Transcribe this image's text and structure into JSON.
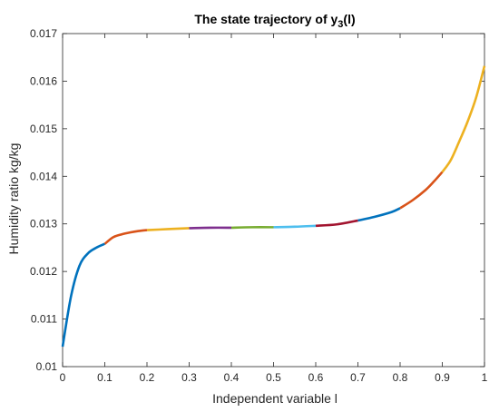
{
  "chart_data": {
    "type": "line",
    "title": {
      "prefix": "The state trajectory of y",
      "subscript": "3",
      "suffix": "(l)"
    },
    "xlabel": "Independent variable l",
    "ylabel": "Humidity ratio kg/kg",
    "xlim": [
      0,
      1
    ],
    "ylim": [
      0.01,
      0.017
    ],
    "xticks": [
      0,
      0.1,
      0.2,
      0.3,
      0.4,
      0.5,
      0.6,
      0.7,
      0.8,
      0.9,
      1
    ],
    "xtick_labels": [
      "0",
      "0.1",
      "0.2",
      "0.3",
      "0.4",
      "0.5",
      "0.6",
      "0.7",
      "0.8",
      "0.9",
      "1"
    ],
    "yticks": [
      0.01,
      0.011,
      0.012,
      0.013,
      0.014,
      0.015,
      0.016,
      0.017
    ],
    "ytick_labels": [
      "0.01",
      "0.011",
      "0.012",
      "0.013",
      "0.014",
      "0.015",
      "0.016",
      "0.017"
    ],
    "grid": false,
    "series": [
      {
        "color": "#0072BD",
        "x": [
          0,
          0.02,
          0.04,
          0.06,
          0.08,
          0.1
        ],
        "y": [
          0.01042,
          0.01148,
          0.01212,
          0.01238,
          0.0125,
          0.01258
        ]
      },
      {
        "color": "#D95319",
        "x": [
          0.1,
          0.12,
          0.14,
          0.16,
          0.18,
          0.2
        ],
        "y": [
          0.01258,
          0.01272,
          0.01278,
          0.01282,
          0.01285,
          0.01287
        ]
      },
      {
        "color": "#EDB120",
        "x": [
          0.2,
          0.25,
          0.3
        ],
        "y": [
          0.01287,
          0.01289,
          0.01291
        ]
      },
      {
        "color": "#7E2F8E",
        "x": [
          0.3,
          0.35,
          0.4
        ],
        "y": [
          0.01291,
          0.01292,
          0.01292
        ]
      },
      {
        "color": "#77AC30",
        "x": [
          0.4,
          0.45,
          0.5
        ],
        "y": [
          0.01292,
          0.01293,
          0.01293
        ]
      },
      {
        "color": "#4DBEEE",
        "x": [
          0.5,
          0.55,
          0.6
        ],
        "y": [
          0.01293,
          0.01294,
          0.01296
        ]
      },
      {
        "color": "#A2142F",
        "x": [
          0.6,
          0.65,
          0.7
        ],
        "y": [
          0.01296,
          0.01299,
          0.01307
        ]
      },
      {
        "color": "#0072BD",
        "x": [
          0.7,
          0.74,
          0.78,
          0.8
        ],
        "y": [
          0.01307,
          0.01315,
          0.01325,
          0.01333
        ]
      },
      {
        "color": "#D95319",
        "x": [
          0.8,
          0.83,
          0.86,
          0.88,
          0.9
        ],
        "y": [
          0.01333,
          0.0135,
          0.01371,
          0.01389,
          0.01409
        ]
      },
      {
        "color": "#EDB120",
        "x": [
          0.9,
          0.92,
          0.94,
          0.96,
          0.98,
          1.0
        ],
        "y": [
          0.01409,
          0.01434,
          0.01473,
          0.01515,
          0.01565,
          0.01632
        ]
      }
    ]
  }
}
